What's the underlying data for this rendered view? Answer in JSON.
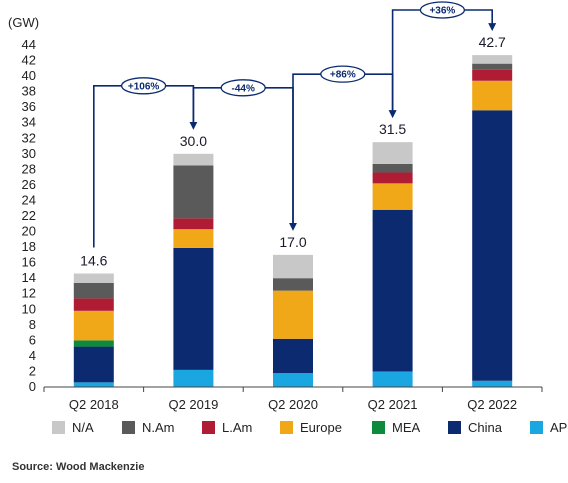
{
  "chart_data": {
    "type": "bar",
    "stacked": true,
    "unit_label": "(GW)",
    "ylim": [
      0,
      44
    ],
    "yticks": [
      0,
      2,
      4,
      6,
      8,
      10,
      12,
      14,
      16,
      18,
      20,
      22,
      24,
      26,
      28,
      30,
      32,
      34,
      36,
      38,
      40,
      42,
      44
    ],
    "categories": [
      "Q2 2018",
      "Q2 2019",
      "Q2 2020",
      "Q2 2021",
      "Q2 2022"
    ],
    "totals": [
      "14.6",
      "30.0",
      "17.0",
      "31.5",
      "42.7"
    ],
    "series": [
      {
        "name": "APeC",
        "color": "#1aa6e0",
        "values": [
          0.6,
          2.2,
          1.8,
          2.0,
          0.8
        ]
      },
      {
        "name": "China",
        "color": "#0b2a6f",
        "values": [
          4.6,
          15.7,
          4.4,
          20.8,
          34.8
        ]
      },
      {
        "name": "MEA",
        "color": "#0e8a3c",
        "values": [
          0.8,
          0.0,
          0.0,
          0.0,
          0.0
        ]
      },
      {
        "name": "Europe",
        "color": "#f0a818",
        "values": [
          3.8,
          2.4,
          6.2,
          3.4,
          3.8
        ]
      },
      {
        "name": "L.Am",
        "color": "#b01c34",
        "values": [
          1.6,
          1.4,
          0.0,
          1.4,
          1.4
        ]
      },
      {
        "name": "N.Am",
        "color": "#5a5a5a",
        "values": [
          2.0,
          6.8,
          1.6,
          1.1,
          0.8
        ]
      },
      {
        "name": "N/A",
        "color": "#c8c8c8",
        "values": [
          1.2,
          1.5,
          3.0,
          2.8,
          1.1
        ]
      }
    ],
    "legend_order": [
      "N/A",
      "N.Am",
      "L.Am",
      "Europe",
      "MEA",
      "China",
      "APeC"
    ],
    "legend_position": "bottom",
    "annotations": [
      {
        "label": "+106%",
        "from": "Q2 2018",
        "to": "Q2 2019"
      },
      {
        "label": "-44%",
        "from": "Q2 2019",
        "to": "Q2 2020"
      },
      {
        "label": "+86%",
        "from": "Q2 2020",
        "to": "Q2 2021"
      },
      {
        "label": "+36%",
        "from": "Q2 2021",
        "to": "Q2 2022"
      }
    ]
  },
  "source": "Source: Wood Mackenzie"
}
